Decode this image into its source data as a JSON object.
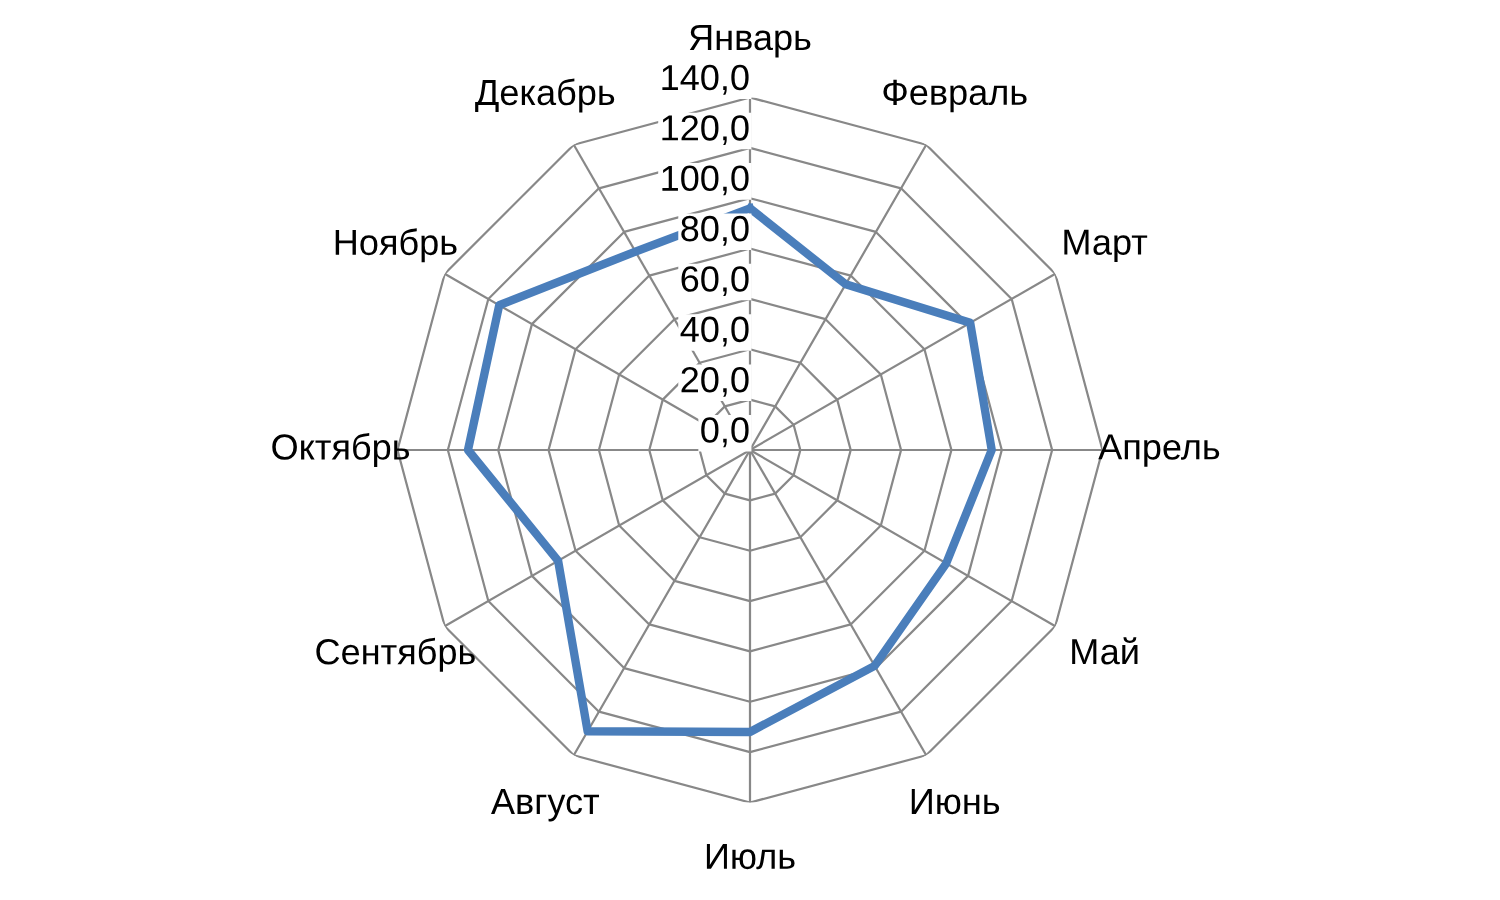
{
  "chart_data": {
    "type": "radar",
    "categories": [
      "Январь",
      "Февраль",
      "Март",
      "Апрель",
      "Май",
      "Июнь",
      "Июль",
      "Август",
      "Сентябрь",
      "Октябрь",
      "Ноябрь",
      "Декабрь"
    ],
    "series": [
      {
        "color": "#4a7ebb",
        "values": [
          96,
          76,
          101,
          96,
          90,
          99,
          112,
          129,
          88,
          112,
          115,
          91
        ]
      }
    ],
    "ylim": [
      0,
      140
    ],
    "yticks": [
      {
        "value": 0,
        "label": "0,0"
      },
      {
        "value": 20,
        "label": "20,0"
      },
      {
        "value": 40,
        "label": "40,0"
      },
      {
        "value": 60,
        "label": "60,0"
      },
      {
        "value": 80,
        "label": "80,0"
      },
      {
        "value": 100,
        "label": "100,0"
      },
      {
        "value": 120,
        "label": "120,0"
      },
      {
        "value": 140,
        "label": "140,0"
      }
    ],
    "grid": true,
    "marker": "none",
    "line_style": "solid"
  }
}
